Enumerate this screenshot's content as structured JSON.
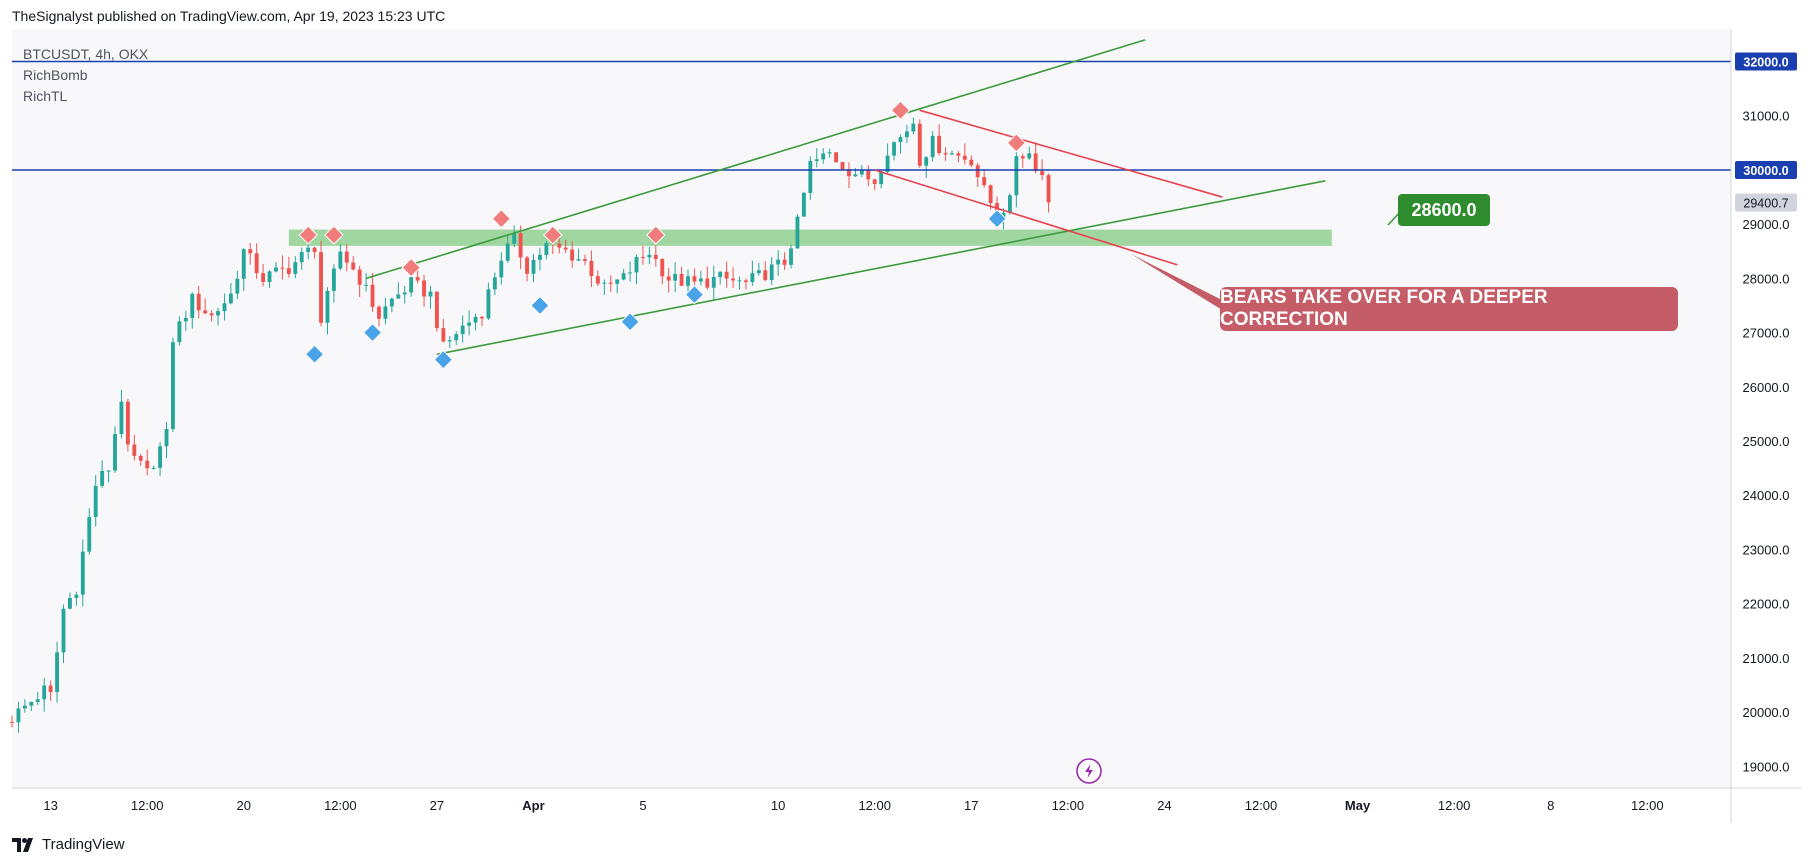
{
  "header": {
    "publisher_text": "TheSignalyst published on TradingView.com, Apr 19, 2023 15:23 UTC"
  },
  "legend": {
    "symbol": "BTCUSDT, 4h, OKX",
    "indicator1": "RichBomb",
    "indicator2": "RichTL"
  },
  "footer": {
    "brand": "TradingView"
  },
  "annotations": {
    "callout": "BEARS TAKE OVER FOR A DEEPER CORRECTION",
    "target": "28600.0"
  },
  "colors": {
    "bull": "#26a69a",
    "bear": "#ef5350",
    "resistance": "#1a3fb0",
    "channel": "#3d9a3d",
    "zone": "#7bc97b",
    "bear_line": "#e8414e",
    "callout": "#c45d68",
    "marker_red": "#f07c7c",
    "marker_blue": "#4aa3e8"
  },
  "chart_data": {
    "type": "candlestick",
    "symbol": "BTCUSDT",
    "timeframe": "4h",
    "exchange": "OKX",
    "ylim": [
      18600,
      32600
    ],
    "y_ticks": [
      19000,
      20000,
      21000,
      22000,
      23000,
      24000,
      25000,
      26000,
      27000,
      28000,
      29000,
      30000,
      31000
    ],
    "y_tick_labels": [
      "19000.0",
      "20000.0",
      "21000.0",
      "22000.0",
      "23000.0",
      "24000.0",
      "25000.0",
      "26000.0",
      "27000.0",
      "28000.0",
      "29000.0",
      "30000.0",
      "31000.0"
    ],
    "x_range_bars": [
      0,
      267
    ],
    "x_ticks": [
      {
        "label": "13",
        "bar": 6
      },
      {
        "label": "12:00",
        "bar": 21
      },
      {
        "label": "20",
        "bar": 36
      },
      {
        "label": "12:00",
        "bar": 51
      },
      {
        "label": "27",
        "bar": 66
      },
      {
        "label": "Apr",
        "bar": 81
      },
      {
        "label": "5",
        "bar": 98
      },
      {
        "label": "10",
        "bar": 119
      },
      {
        "label": "12:00",
        "bar": 134
      },
      {
        "label": "17",
        "bar": 149
      },
      {
        "label": "12:00",
        "bar": 164
      },
      {
        "label": "24",
        "bar": 179
      },
      {
        "label": "12:00",
        "bar": 194
      },
      {
        "label": "May",
        "bar": 209
      },
      {
        "label": "12:00",
        "bar": 224
      },
      {
        "label": "8",
        "bar": 239
      },
      {
        "label": "12:00",
        "bar": 254
      }
    ],
    "close_anchors": [
      [
        0,
        19900
      ],
      [
        5,
        20400
      ],
      [
        6,
        20300
      ],
      [
        8,
        21900
      ],
      [
        10,
        22300
      ],
      [
        13,
        24200
      ],
      [
        15,
        24500
      ],
      [
        17,
        25800
      ],
      [
        18,
        24800
      ],
      [
        21,
        24400
      ],
      [
        24,
        25100
      ],
      [
        25,
        26900
      ],
      [
        28,
        27600
      ],
      [
        31,
        27300
      ],
      [
        34,
        27700
      ],
      [
        36,
        28500
      ],
      [
        39,
        28000
      ],
      [
        43,
        28200
      ],
      [
        45,
        28400
      ],
      [
        47,
        28600
      ],
      [
        48,
        27200
      ],
      [
        51,
        28500
      ],
      [
        54,
        28000
      ],
      [
        57,
        27300
      ],
      [
        59,
        27600
      ],
      [
        62,
        27900
      ],
      [
        65,
        27700
      ],
      [
        67,
        26700
      ],
      [
        69,
        27000
      ],
      [
        73,
        27400
      ],
      [
        76,
        28400
      ],
      [
        78,
        28700
      ],
      [
        80,
        28200
      ],
      [
        83,
        28600
      ],
      [
        86,
        28500
      ],
      [
        89,
        28300
      ],
      [
        92,
        27800
      ],
      [
        95,
        28000
      ],
      [
        97,
        28300
      ],
      [
        99,
        28500
      ],
      [
        102,
        28000
      ],
      [
        106,
        27900
      ],
      [
        110,
        28000
      ],
      [
        114,
        27900
      ],
      [
        117,
        28100
      ],
      [
        120,
        28300
      ],
      [
        122,
        29000
      ],
      [
        124,
        30100
      ],
      [
        127,
        30300
      ],
      [
        130,
        30000
      ],
      [
        134,
        29800
      ],
      [
        136,
        30400
      ],
      [
        138,
        30600
      ],
      [
        140,
        30900
      ],
      [
        141,
        30200
      ],
      [
        143,
        30500
      ],
      [
        146,
        30300
      ],
      [
        149,
        30200
      ],
      [
        151,
        29600
      ],
      [
        153,
        29200
      ],
      [
        155,
        29400
      ],
      [
        156,
        30300
      ],
      [
        158,
        30300
      ],
      [
        160,
        29900
      ],
      [
        161,
        29400
      ]
    ],
    "horizontal_levels": [
      {
        "price": 32000,
        "label": "32000.0"
      },
      {
        "price": 30000,
        "label": "30000.0"
      }
    ],
    "current_price": {
      "price": 29400.7,
      "label": "29400.7"
    },
    "support_zone": {
      "from": 28600,
      "to": 28900,
      "bar_start": 43,
      "bar_end": 205
    },
    "ascending_channel": {
      "upper": [
        [
          55,
          28000
        ],
        [
          176,
          32400
        ]
      ],
      "lower": [
        [
          66,
          26600
        ],
        [
          204,
          29800
        ]
      ]
    },
    "descending_channel": {
      "upper": [
        [
          141,
          31100
        ],
        [
          188,
          29500
        ]
      ],
      "lower": [
        [
          134,
          30000
        ],
        [
          181,
          28250
        ]
      ]
    },
    "markers_sell": [
      [
        46,
        28800
      ],
      [
        50,
        28800
      ],
      [
        62,
        28200
      ],
      [
        76,
        29100
      ],
      [
        84,
        28800
      ],
      [
        100,
        28800
      ],
      [
        138,
        31100
      ],
      [
        156,
        30500
      ]
    ],
    "markers_buy": [
      [
        47,
        26600
      ],
      [
        56,
        27000
      ],
      [
        67,
        26500
      ],
      [
        82,
        27500
      ],
      [
        96,
        27200
      ],
      [
        106,
        27700
      ],
      [
        153,
        29100
      ]
    ],
    "price_axis": "right",
    "grid": false
  }
}
